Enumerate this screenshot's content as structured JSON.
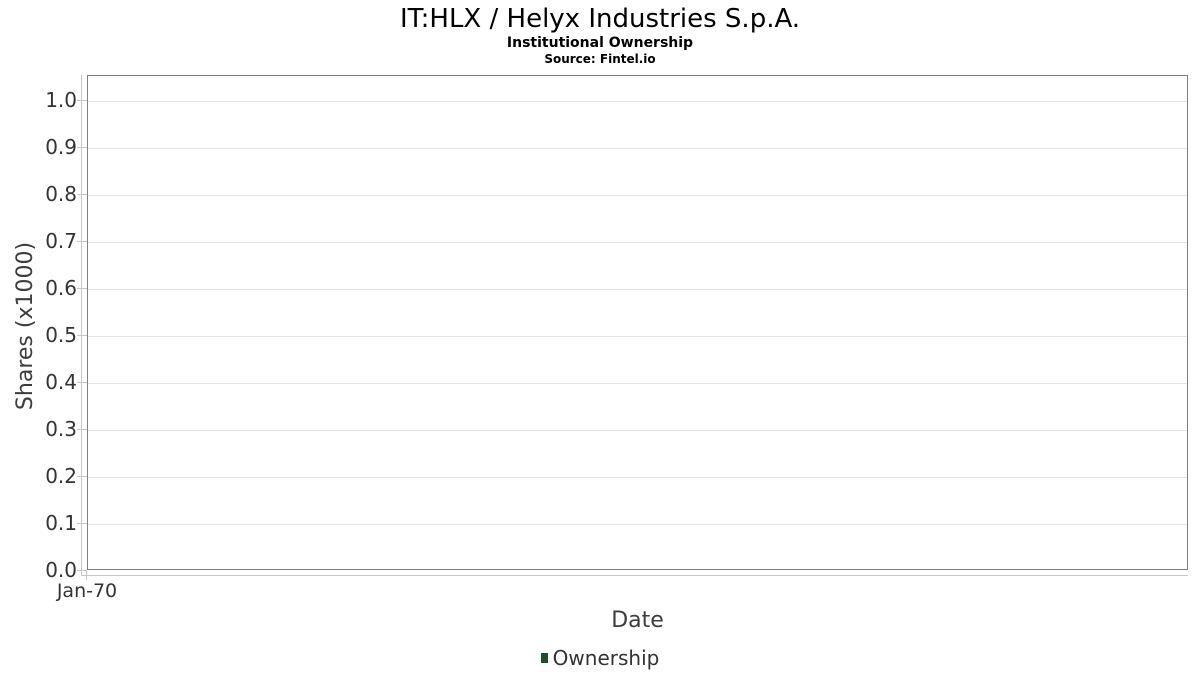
{
  "chart": {
    "title": "IT:HLX / Helyx Industries S.p.A.",
    "subtitle": "Institutional Ownership",
    "source": "Source: Fintel.io",
    "xlabel": "Date",
    "ylabel": "Shares (x1000)",
    "y_ticks": [
      "1.0",
      "0.9",
      "0.8",
      "0.7",
      "0.6",
      "0.5",
      "0.4",
      "0.3",
      "0.2",
      "0.1",
      "0.0"
    ],
    "x_ticks": [
      "Jan-70"
    ],
    "legend": {
      "label": "Ownership",
      "marker_color": "#1e4d2b"
    }
  },
  "chart_data": {
    "type": "line",
    "title": "IT:HLX / Helyx Industries S.p.A.",
    "subtitle": "Institutional Ownership",
    "source": "Source: Fintel.io",
    "xlabel": "Date",
    "ylabel": "Shares (x1000)",
    "x": [
      "Jan-70"
    ],
    "series": [
      {
        "name": "Ownership",
        "values": []
      }
    ],
    "ylim": [
      0.0,
      1.05
    ],
    "y_tick_step": 0.1,
    "grid": true,
    "legend_position": "bottom",
    "note": "empty plot - no data points rendered"
  },
  "colors": {
    "background": "#ffffff",
    "text_primary": "#000000",
    "text_secondary": "#333333",
    "axis_label": "#3d3d3d",
    "gridline": "#e5e5e5",
    "plot_border": "#7f7f7f",
    "axis_line": "#c6c6c6",
    "legend_marker": "#1e4d2b"
  }
}
